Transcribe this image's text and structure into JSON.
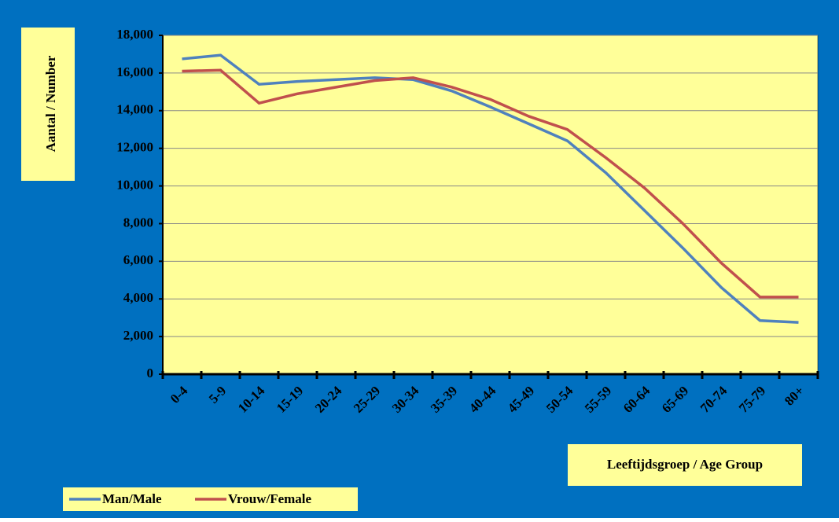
{
  "chart_data": {
    "type": "line",
    "categories": [
      "0-4",
      "5-9",
      "10-14",
      "15-19",
      "20-24",
      "25-29",
      "30-34",
      "35-39",
      "40-44",
      "45-49",
      "50-54",
      "55-59",
      "60-64",
      "65-69",
      "70-74",
      "75-79",
      "80+"
    ],
    "series": [
      {
        "name": "Man/Male",
        "color": "#4f81bd",
        "values": [
          16750,
          16950,
          15400,
          15550,
          15650,
          15750,
          15650,
          15050,
          14200,
          13300,
          12400,
          10700,
          8700,
          6700,
          4600,
          2850,
          2750
        ]
      },
      {
        "name": "Vrouw/Female",
        "color": "#c0504d",
        "values": [
          16100,
          16150,
          14400,
          14900,
          15250,
          15600,
          15750,
          15250,
          14600,
          13700,
          13000,
          11500,
          9900,
          8000,
          5900,
          4100,
          4100
        ]
      }
    ],
    "y_label": "Aantal / Number",
    "x_label": "Leeftijdsgroep / Age Group",
    "ylim": [
      0,
      18000
    ],
    "yticks": [
      0,
      {
        "value": 2000,
        "label": "2,000"
      },
      {
        "value": 4000,
        "label": "4,000"
      },
      {
        "value": 6000,
        "label": "6,000"
      },
      {
        "value": 8000,
        "label": "8,000"
      },
      {
        "value": 10000,
        "label": "10,000"
      },
      {
        "value": 12000,
        "label": "12,000"
      },
      {
        "value": 14000,
        "label": "14,000"
      },
      {
        "value": 16000,
        "label": "16,000"
      },
      {
        "value": 18000,
        "label": "18,000"
      }
    ],
    "grid": true
  }
}
